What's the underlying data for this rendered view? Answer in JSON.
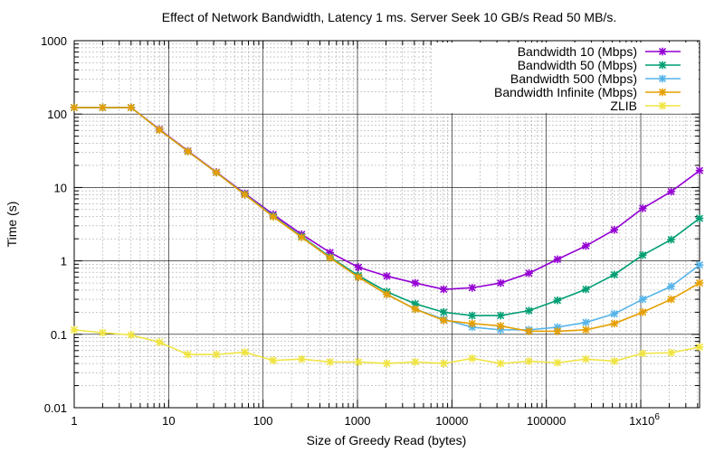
{
  "chart_data": {
    "type": "line",
    "title": "Effect of Network Bandwidth, Latency 1 ms. Server Seek 10 GB/s Read 50 MB/s.",
    "xlabel": "Size of Greedy Read (bytes)",
    "ylabel": "Time (s)",
    "xscale": "log",
    "yscale": "log",
    "xlim": [
      1,
      4194304
    ],
    "ylim": [
      0.01,
      1000
    ],
    "grid": true,
    "legend_position": "top-right",
    "x_ticks": [
      {
        "value": 1,
        "label": "1"
      },
      {
        "value": 10,
        "label": "10"
      },
      {
        "value": 100,
        "label": "100"
      },
      {
        "value": 1000,
        "label": "1000"
      },
      {
        "value": 10000,
        "label": "10000"
      },
      {
        "value": 100000,
        "label": "100000"
      },
      {
        "value": 1000000,
        "label": "1x10"
      }
    ],
    "x_tick_superscript": "6",
    "y_ticks": [
      {
        "value": 0.01,
        "label": "0.01"
      },
      {
        "value": 0.1,
        "label": "0.1"
      },
      {
        "value": 1,
        "label": "1"
      },
      {
        "value": 10,
        "label": "10"
      },
      {
        "value": 100,
        "label": "100"
      },
      {
        "value": 1000,
        "label": "1000"
      }
    ],
    "x": [
      1,
      2,
      4,
      8,
      16,
      32,
      64,
      128,
      256,
      512,
      1024,
      2048,
      4096,
      8192,
      16384,
      32768,
      65536,
      131072,
      262144,
      524288,
      1048576,
      2097152,
      4194304
    ],
    "series": [
      {
        "name": "Bandwidth 10 (Mbps)",
        "color": "#9400d3",
        "values": [
          123,
          123,
          123,
          62,
          31.5,
          16.2,
          8.3,
          4.3,
          2.3,
          1.3,
          0.82,
          0.62,
          0.5,
          0.41,
          0.43,
          0.5,
          0.68,
          1.05,
          1.6,
          2.65,
          5.2,
          8.8,
          17
        ]
      },
      {
        "name": "Bandwidth 50 (Mbps)",
        "color": "#009e73",
        "values": [
          123,
          123,
          123,
          61,
          31,
          16,
          8.1,
          4.1,
          2.15,
          1.13,
          0.63,
          0.38,
          0.26,
          0.2,
          0.18,
          0.18,
          0.21,
          0.29,
          0.41,
          0.65,
          1.2,
          1.95,
          3.8
        ]
      },
      {
        "name": "Bandwidth 500 (Mbps)",
        "color": "#56b4e9",
        "values": [
          123,
          123,
          123,
          61,
          31,
          16,
          8.0,
          4.05,
          2.1,
          1.1,
          0.6,
          0.35,
          0.22,
          0.16,
          0.125,
          0.115,
          0.115,
          0.125,
          0.145,
          0.19,
          0.3,
          0.45,
          0.88
        ]
      },
      {
        "name": "Bandwidth Infinite (Mbps)",
        "color": "#e69f00",
        "values": [
          123,
          123,
          123,
          61,
          31,
          16,
          8.0,
          4.0,
          2.1,
          1.1,
          0.6,
          0.35,
          0.22,
          0.155,
          0.14,
          0.13,
          0.11,
          0.11,
          0.115,
          0.14,
          0.2,
          0.3,
          0.5
        ]
      },
      {
        "name": "ZLIB",
        "color": "#f0e442",
        "values": [
          0.115,
          0.105,
          0.098,
          0.078,
          0.053,
          0.053,
          0.057,
          0.044,
          0.046,
          0.042,
          0.042,
          0.04,
          0.042,
          0.04,
          0.047,
          0.04,
          0.043,
          0.041,
          0.046,
          0.043,
          0.055,
          0.056,
          0.067
        ]
      }
    ]
  }
}
